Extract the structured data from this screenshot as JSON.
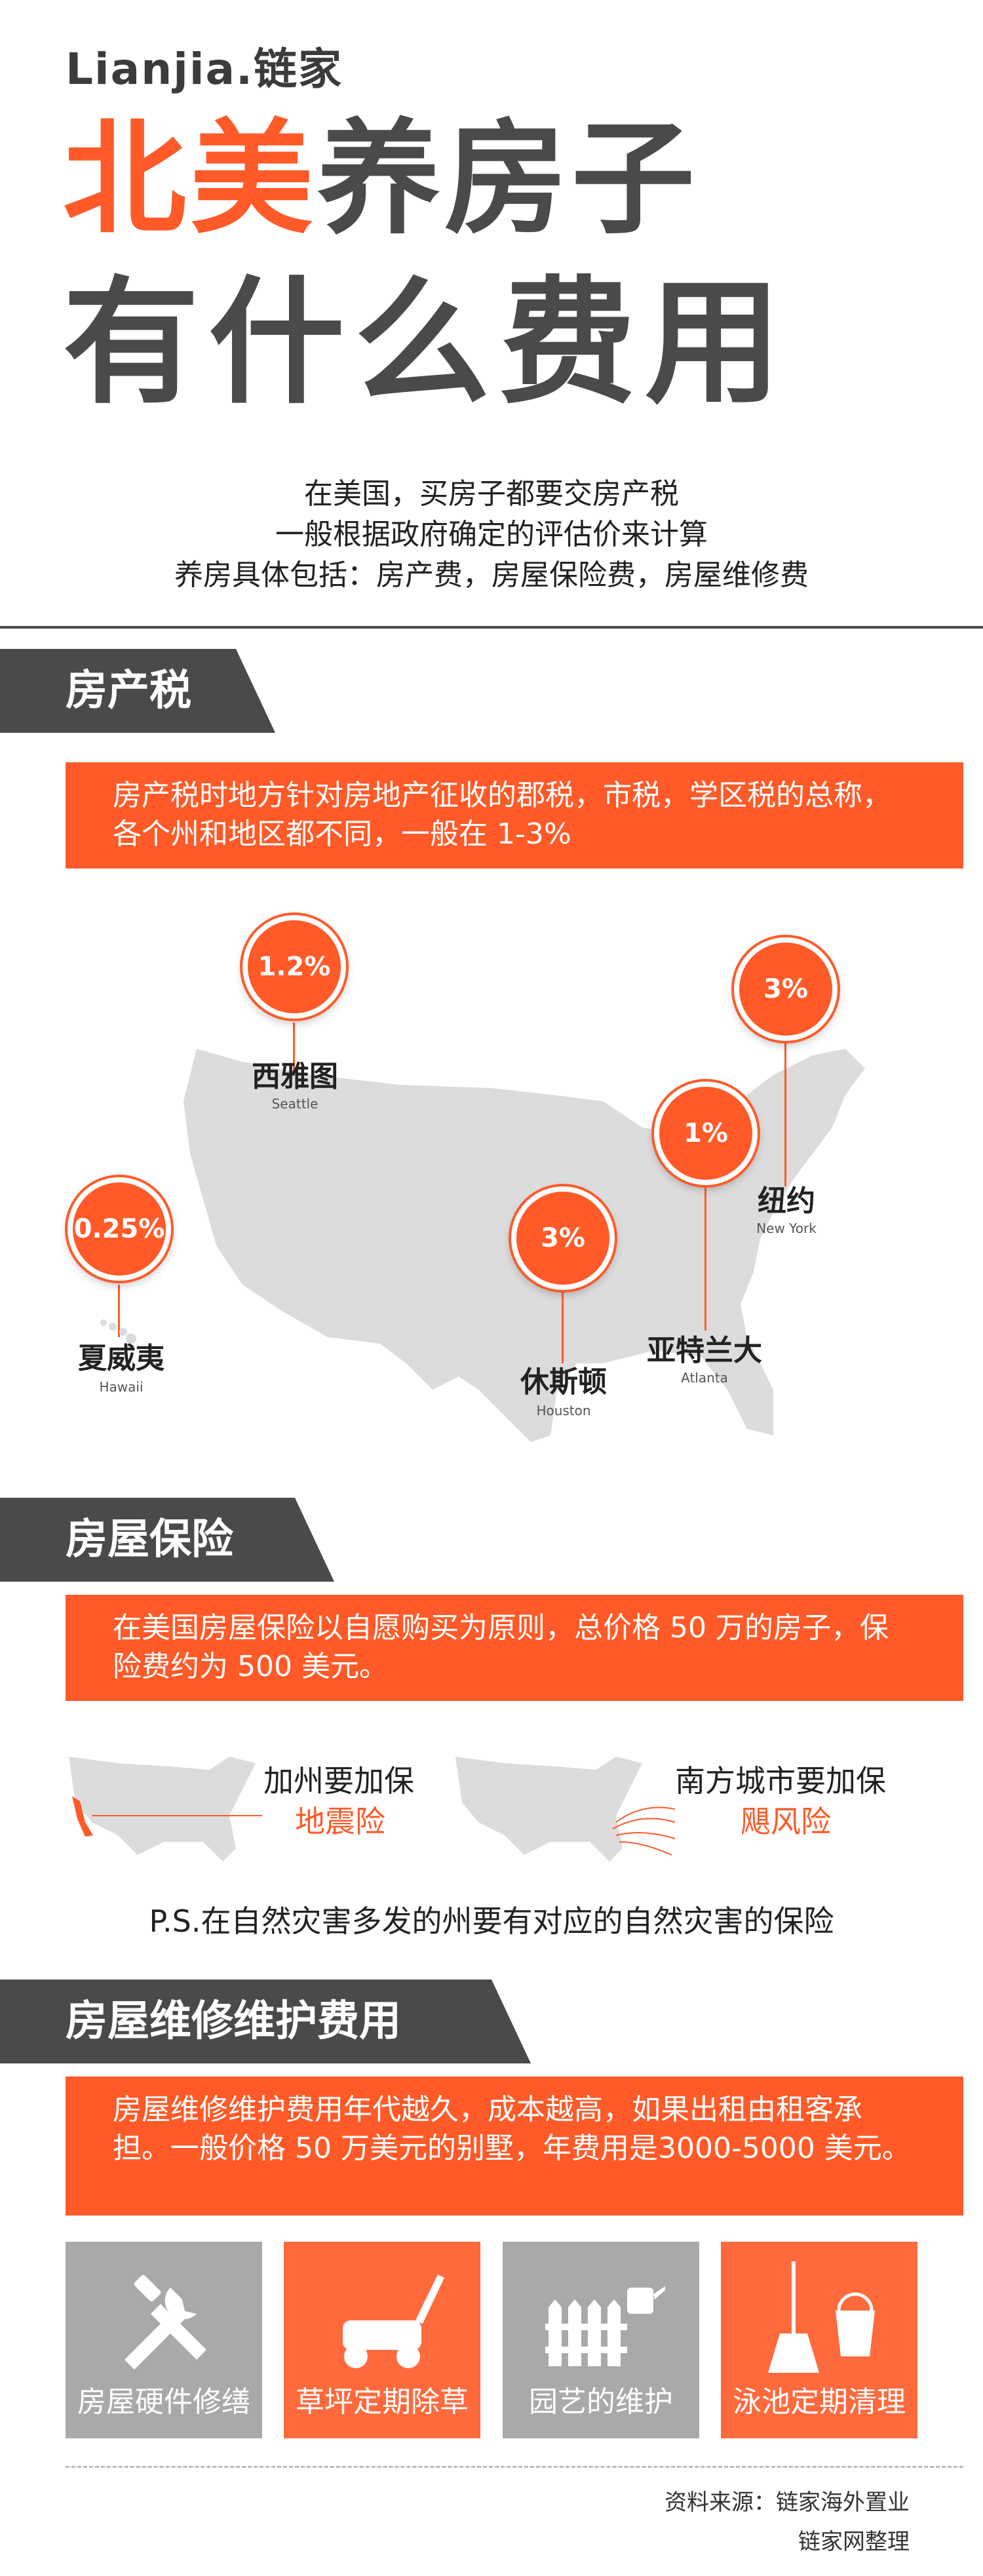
{
  "header": {
    "logo_latin": "Lianjia.",
    "logo_cn": "链家",
    "title_line1_highlight": "北美",
    "title_line1_rest": "养房子",
    "title_line2": "有什么费用",
    "intro_lines": [
      "在美国，买房子都要交房产税",
      "一般根据政府确定的评估价来计算",
      "养房具体包括：房产费，房屋保险费，房屋维修费"
    ]
  },
  "property_tax": {
    "heading": "房产税",
    "description": "房产税时地方针对房地产征收的郡税，市税，学区税的总称，各个州和地区都不同，一般在 1-3%",
    "cities": [
      {
        "name": "西雅图",
        "name_en": "Seattle",
        "rate": "1.2%"
      },
      {
        "name": "纽约",
        "name_en": "New York",
        "rate": "3%"
      },
      {
        "name": "亚特兰大",
        "name_en": "Atlanta",
        "rate": "1%"
      },
      {
        "name": "休斯顿",
        "name_en": "Houston",
        "rate": "3%"
      },
      {
        "name": "夏威夷",
        "name_en": "Hawaii",
        "rate": "0.25%"
      }
    ]
  },
  "insurance": {
    "heading": "房屋保险",
    "description": "在美国房屋保险以自愿购买为原则，总价格 50 万的房子，保险费约为 500 美元。",
    "west_label": "加州要加保",
    "west_highlight": "地震险",
    "south_label": "南方城市要加保",
    "south_highlight": "飓风险",
    "ps": "P.S.在自然灾害多发的州要有对应的自然灾害的保险"
  },
  "maintenance": {
    "heading": "房屋维修维护费用",
    "description": "房屋维修维护费用年代越久，成本越高，如果出租由租客承担。一般价格 50 万美元的别墅，年费用是3000-5000 美元。",
    "tiles": [
      {
        "label": "房屋硬件修缮",
        "icon": "tools-icon",
        "color": "#a9a9a9"
      },
      {
        "label": "草坪定期除草",
        "icon": "lawn-mower-icon",
        "color": "#ff6a3d"
      },
      {
        "label": "园艺的维护",
        "icon": "garden-fence-icon",
        "color": "#a9a9a9"
      },
      {
        "label": "泳池定期清理",
        "icon": "pool-cleaning-icon",
        "color": "#ff6a3d"
      }
    ]
  },
  "source": {
    "line1": "资料来源：链家海外置业",
    "line2": "链家网整理"
  },
  "colors": {
    "accent": "#ff5a28",
    "dark": "#4a4a4a",
    "map_gray": "#dcdcdc"
  }
}
